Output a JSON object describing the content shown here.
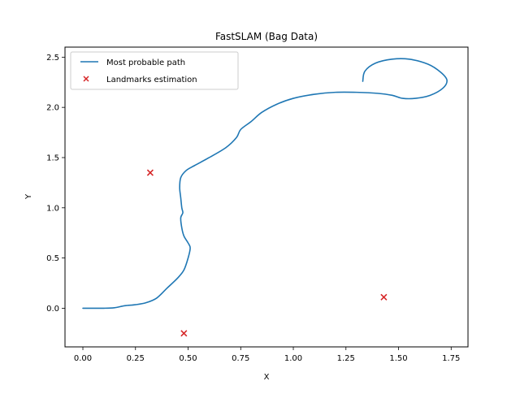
{
  "chart_data": {
    "type": "scatter",
    "title": "FastSLAM (Bag Data)",
    "xlabel": "X",
    "ylabel": "Y",
    "xlim": [
      -0.085,
      1.83
    ],
    "ylim": [
      -0.385,
      2.6
    ],
    "xticks": [
      0.0,
      0.25,
      0.5,
      0.75,
      1.0,
      1.25,
      1.5,
      1.75
    ],
    "xtick_labels": [
      "0.00",
      "0.25",
      "0.50",
      "0.75",
      "1.00",
      "1.25",
      "1.50",
      "1.75"
    ],
    "yticks": [
      0.0,
      0.5,
      1.0,
      1.5,
      2.0,
      2.5
    ],
    "ytick_labels": [
      "0.0",
      "0.5",
      "1.0",
      "1.5",
      "2.0",
      "2.5"
    ],
    "grid": false,
    "legend_position": "top-left",
    "series": [
      {
        "name": "Most probable path",
        "kind": "line",
        "color": "#1f77b4",
        "points": [
          [
            0.0,
            0.0
          ],
          [
            0.1,
            0.0
          ],
          [
            0.15,
            0.005
          ],
          [
            0.2,
            0.025
          ],
          [
            0.25,
            0.035
          ],
          [
            0.3,
            0.055
          ],
          [
            0.35,
            0.1
          ],
          [
            0.4,
            0.2
          ],
          [
            0.45,
            0.3
          ],
          [
            0.48,
            0.38
          ],
          [
            0.5,
            0.5
          ],
          [
            0.51,
            0.6
          ],
          [
            0.5,
            0.65
          ],
          [
            0.48,
            0.72
          ],
          [
            0.47,
            0.8
          ],
          [
            0.465,
            0.9
          ],
          [
            0.475,
            0.95
          ],
          [
            0.47,
            1.0
          ],
          [
            0.465,
            1.1
          ],
          [
            0.46,
            1.2
          ],
          [
            0.465,
            1.3
          ],
          [
            0.49,
            1.37
          ],
          [
            0.53,
            1.42
          ],
          [
            0.6,
            1.5
          ],
          [
            0.68,
            1.6
          ],
          [
            0.73,
            1.7
          ],
          [
            0.75,
            1.78
          ],
          [
            0.8,
            1.86
          ],
          [
            0.85,
            1.95
          ],
          [
            0.92,
            2.03
          ],
          [
            1.0,
            2.09
          ],
          [
            1.1,
            2.13
          ],
          [
            1.2,
            2.15
          ],
          [
            1.3,
            2.15
          ],
          [
            1.4,
            2.14
          ],
          [
            1.47,
            2.12
          ],
          [
            1.52,
            2.09
          ],
          [
            1.58,
            2.09
          ],
          [
            1.65,
            2.12
          ],
          [
            1.71,
            2.19
          ],
          [
            1.73,
            2.27
          ],
          [
            1.7,
            2.35
          ],
          [
            1.64,
            2.43
          ],
          [
            1.55,
            2.48
          ],
          [
            1.47,
            2.48
          ],
          [
            1.39,
            2.44
          ],
          [
            1.34,
            2.36
          ],
          [
            1.33,
            2.26
          ]
        ]
      },
      {
        "name": "Landmarks estimation",
        "kind": "scatter",
        "marker": "x",
        "color": "#d62728",
        "points": [
          [
            0.32,
            1.35
          ],
          [
            1.43,
            0.11
          ],
          [
            0.48,
            -0.25
          ]
        ]
      }
    ]
  }
}
